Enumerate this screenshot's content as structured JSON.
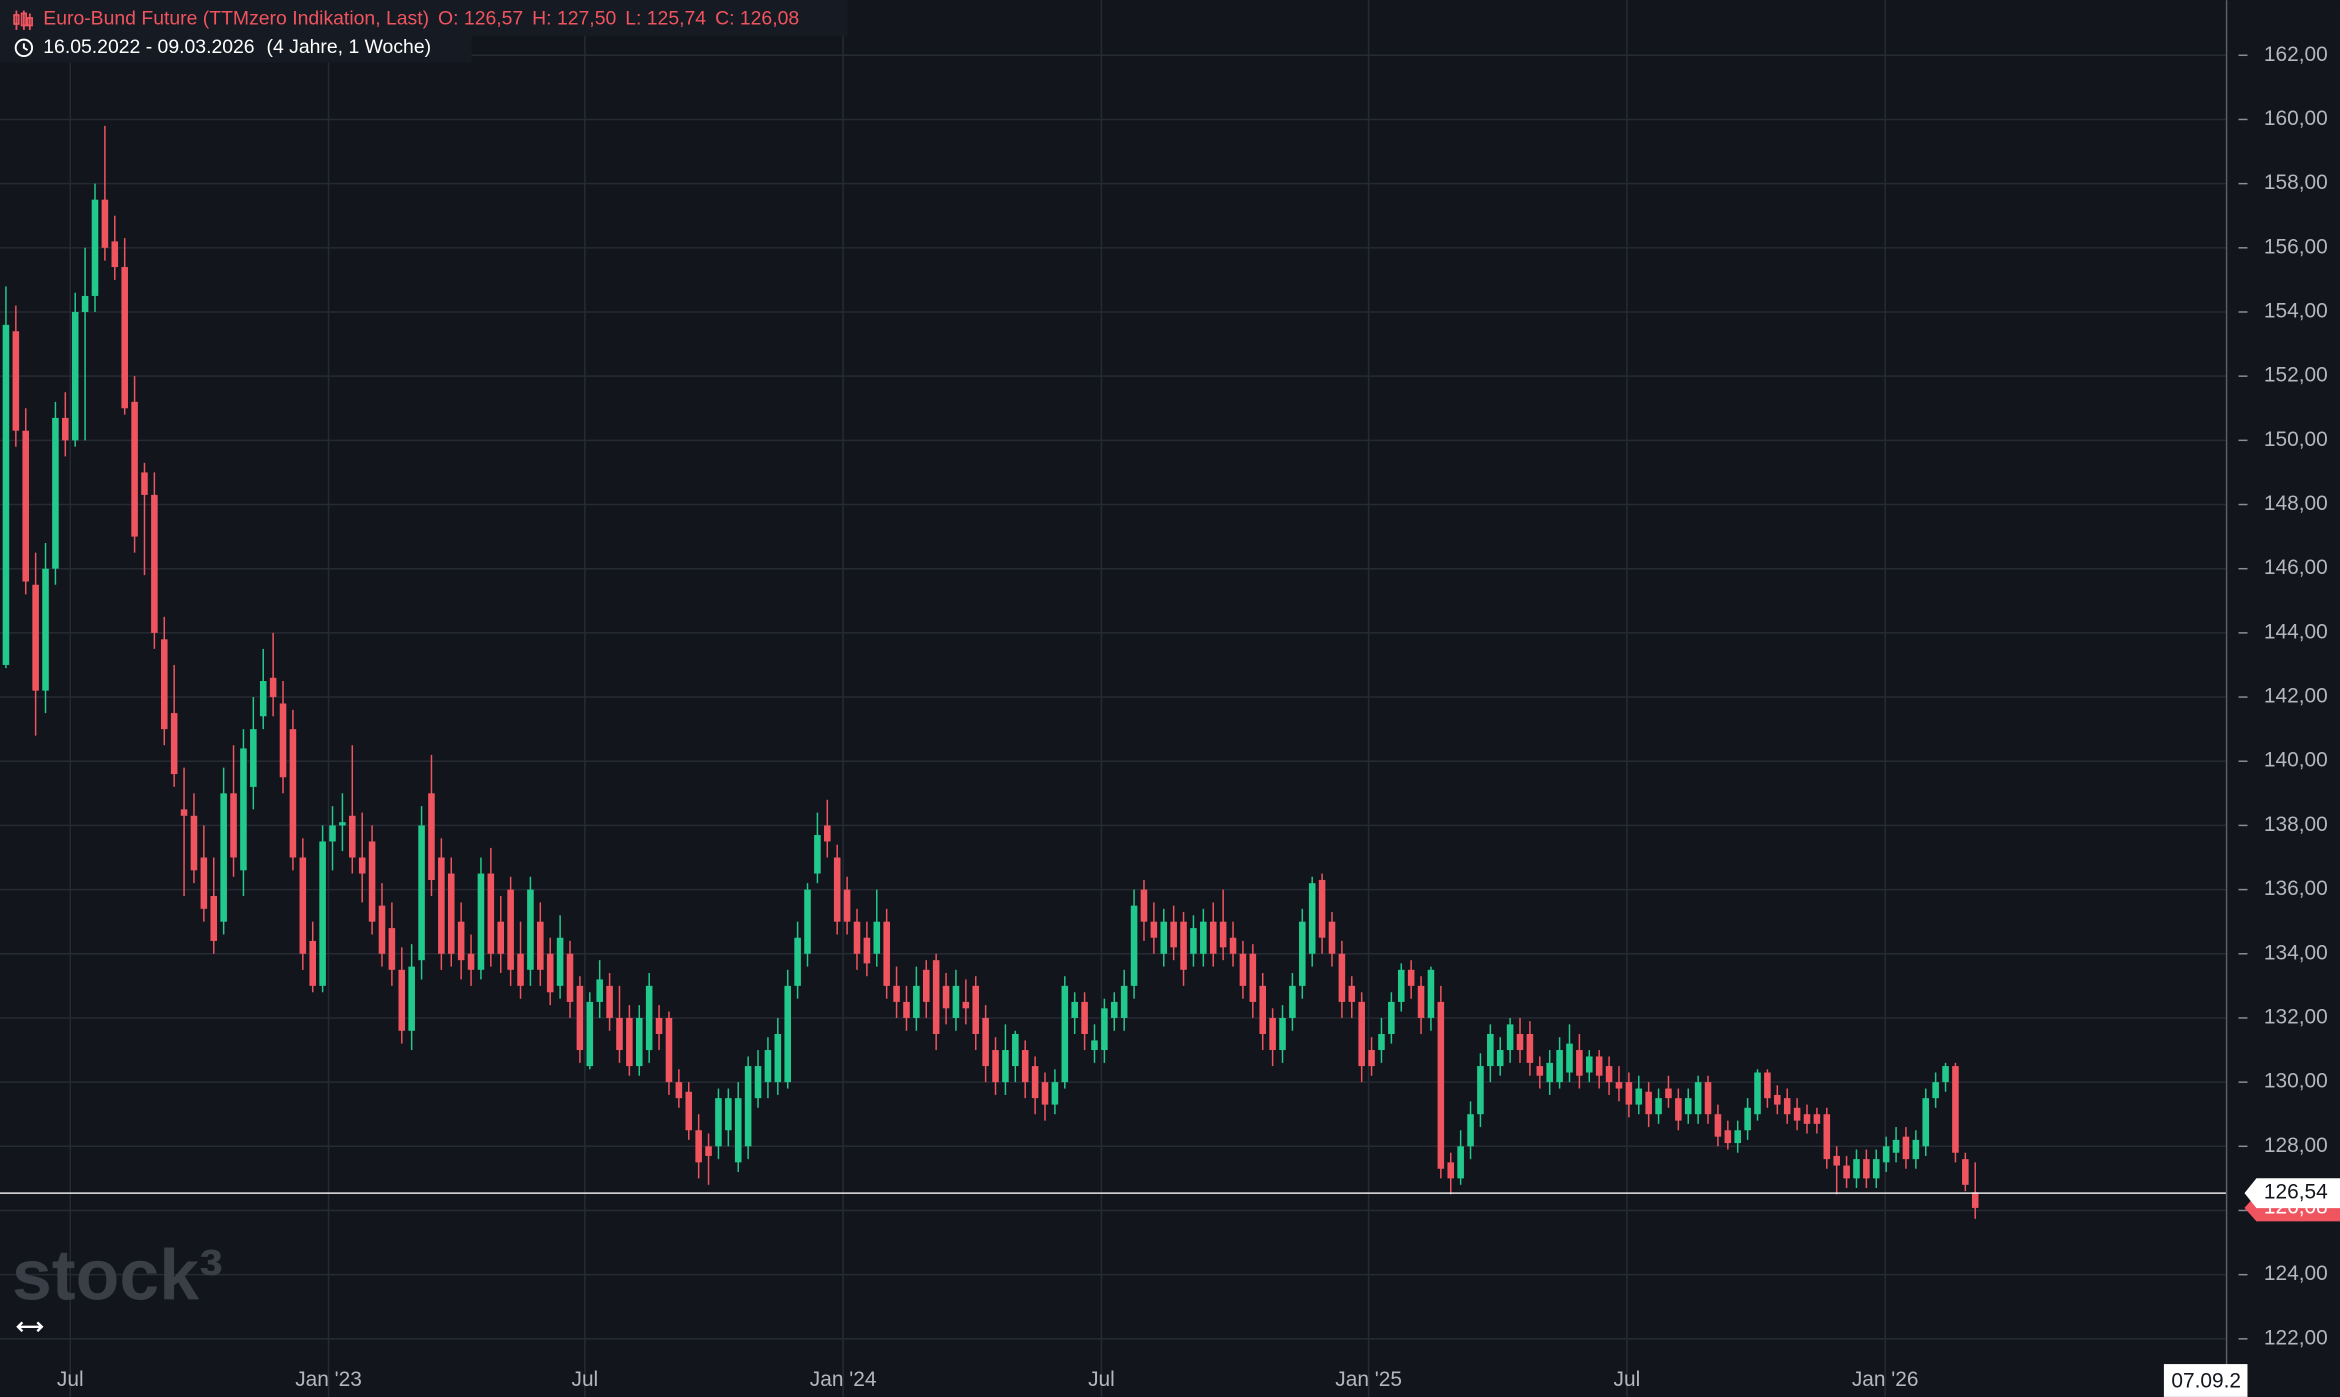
{
  "chart_data": {
    "type": "candlestick",
    "title": "Euro-Bund Future (TTMzero Indikation, Last)",
    "ohlc_labels": [
      "O: 126,57",
      "H: 127,50",
      "L: 125,74",
      "C: 126,08"
    ],
    "subtitle": "16.05.2022 - 09.03.2026",
    "subtitle_note": "(4 Jahre, 1 Woche)",
    "watermark": "stock³",
    "cursor_date": "07.09.2",
    "up_color": "#22c98c",
    "down_color": "#f0545f",
    "grid": true,
    "ylim": [
      120.19,
      163.72
    ],
    "yticks": [
      {
        "value": 122,
        "label": "122,00"
      },
      {
        "value": 124,
        "label": "124,00"
      },
      {
        "value": 126,
        "label": "126,00"
      },
      {
        "value": 128,
        "label": "128,00"
      },
      {
        "value": 130,
        "label": "130,00"
      },
      {
        "value": 132,
        "label": "132,00"
      },
      {
        "value": 134,
        "label": "134,00"
      },
      {
        "value": 136,
        "label": "136,00"
      },
      {
        "value": 138,
        "label": "138,00"
      },
      {
        "value": 140,
        "label": "140,00"
      },
      {
        "value": 142,
        "label": "142,00"
      },
      {
        "value": 144,
        "label": "144,00"
      },
      {
        "value": 146,
        "label": "146,00"
      },
      {
        "value": 148,
        "label": "148,00"
      },
      {
        "value": 150,
        "label": "150,00"
      },
      {
        "value": 152,
        "label": "152,00"
      },
      {
        "value": 154,
        "label": "154,00"
      },
      {
        "value": 156,
        "label": "156,00"
      },
      {
        "value": 158,
        "label": "158,00"
      },
      {
        "value": 160,
        "label": "160,00"
      },
      {
        "value": 162,
        "label": "162,00"
      }
    ],
    "xlim": [
      -0.6,
      224.4
    ],
    "xticks": [
      {
        "value": 6.5,
        "label": "Jul"
      },
      {
        "value": 32.6,
        "label": "Jan '23"
      },
      {
        "value": 58.5,
        "label": "Jul"
      },
      {
        "value": 84.6,
        "label": "Jan '24"
      },
      {
        "value": 110.7,
        "label": "Jul"
      },
      {
        "value": 137.7,
        "label": "Jan '25"
      },
      {
        "value": 163.8,
        "label": "Jul"
      },
      {
        "value": 189.9,
        "label": "Jan '26"
      }
    ],
    "last_price": {
      "value": 126.54,
      "label": "126,54"
    },
    "close_price": {
      "value": 126.08,
      "label": "126,08"
    },
    "candles": [
      [
        143,
        154.8,
        142.9,
        153.6
      ],
      [
        153.4,
        154.2,
        149.8,
        150.3
      ],
      [
        150.3,
        151,
        145.2,
        145.6
      ],
      [
        145.5,
        146.5,
        140.8,
        142.2
      ],
      [
        142.2,
        146.8,
        141.5,
        146
      ],
      [
        146,
        151.2,
        145.5,
        150.7
      ],
      [
        150.7,
        151.5,
        149.5,
        150
      ],
      [
        150,
        154.6,
        149.8,
        154
      ],
      [
        154,
        156,
        150,
        154.5
      ],
      [
        154.5,
        158,
        154,
        157.5
      ],
      [
        157.5,
        159.8,
        155.6,
        156
      ],
      [
        156.2,
        157,
        155,
        155.4
      ],
      [
        155.4,
        156.3,
        150.8,
        151
      ],
      [
        151.2,
        152,
        146.5,
        147
      ],
      [
        149,
        149.3,
        145.8,
        148.3
      ],
      [
        148.3,
        149,
        143.5,
        144
      ],
      [
        143.8,
        144.5,
        140.5,
        141
      ],
      [
        141.5,
        143,
        139.2,
        139.6
      ],
      [
        138.5,
        139.8,
        135.8,
        138.3
      ],
      [
        138.3,
        139,
        136.2,
        136.6
      ],
      [
        137,
        138,
        135,
        135.4
      ],
      [
        135.8,
        137,
        134,
        134.4
      ],
      [
        135,
        139.8,
        134.6,
        139
      ],
      [
        139,
        140.5,
        136.4,
        137
      ],
      [
        136.6,
        141,
        135.8,
        140.4
      ],
      [
        139.2,
        142,
        138.5,
        141
      ],
      [
        141.4,
        143.5,
        141,
        142.5
      ],
      [
        142.6,
        144,
        141.4,
        142
      ],
      [
        141.8,
        142.5,
        139,
        139.5
      ],
      [
        141,
        141.6,
        136.6,
        137
      ],
      [
        137,
        137.6,
        133.5,
        134
      ],
      [
        134.4,
        135,
        132.8,
        133
      ],
      [
        133,
        138,
        132.8,
        137.5
      ],
      [
        137.5,
        138.6,
        136.6,
        138
      ],
      [
        138,
        139,
        137.2,
        138.1
      ],
      [
        138.3,
        140.5,
        136.5,
        137
      ],
      [
        137,
        138.4,
        135.6,
        136.5
      ],
      [
        137.5,
        138,
        134.6,
        135
      ],
      [
        135.5,
        136.2,
        133.6,
        134
      ],
      [
        134.8,
        135.6,
        133,
        133.5
      ],
      [
        133.5,
        134.2,
        131.2,
        131.6
      ],
      [
        131.6,
        134.3,
        131,
        133.6
      ],
      [
        133.8,
        138.6,
        133.2,
        138
      ],
      [
        139,
        140.2,
        135.8,
        136.3
      ],
      [
        137,
        137.6,
        133.5,
        134
      ],
      [
        136.5,
        137,
        133.6,
        134
      ],
      [
        135,
        135.6,
        133.2,
        133.8
      ],
      [
        134,
        134.6,
        133,
        133.5
      ],
      [
        133.5,
        137,
        133.2,
        136.5
      ],
      [
        136.5,
        137.3,
        133.6,
        134
      ],
      [
        135,
        135.8,
        133.4,
        134
      ],
      [
        136,
        136.4,
        133,
        133.5
      ],
      [
        134,
        135,
        132.6,
        133
      ],
      [
        133.5,
        136.4,
        133,
        136
      ],
      [
        135,
        135.6,
        133,
        133.5
      ],
      [
        134,
        134.5,
        132.4,
        132.8
      ],
      [
        133,
        135.2,
        132.6,
        134.5
      ],
      [
        134,
        134.4,
        132,
        132.5
      ],
      [
        133,
        133.3,
        130.6,
        131
      ],
      [
        130.5,
        132.8,
        130.4,
        132.5
      ],
      [
        132.5,
        133.8,
        132,
        133.2
      ],
      [
        133,
        133.4,
        131.6,
        132
      ],
      [
        132,
        133,
        130.6,
        131
      ],
      [
        132,
        132.4,
        130.2,
        130.5
      ],
      [
        130.5,
        132.4,
        130.2,
        132
      ],
      [
        131,
        133.4,
        130.6,
        133
      ],
      [
        132,
        132.4,
        131,
        131.5
      ],
      [
        132,
        132.2,
        129.6,
        130
      ],
      [
        130,
        130.4,
        129.2,
        129.5
      ],
      [
        129.7,
        130,
        128.2,
        128.5
      ],
      [
        128.5,
        129,
        127,
        127.5
      ],
      [
        128,
        128.4,
        126.8,
        127.7
      ],
      [
        128,
        129.8,
        127.6,
        129.5
      ],
      [
        128.5,
        129.8,
        128,
        129.5
      ],
      [
        127.5,
        130,
        127.2,
        129.5
      ],
      [
        128,
        130.8,
        127.6,
        130.5
      ],
      [
        129.5,
        131,
        129.2,
        130.5
      ],
      [
        130,
        131.4,
        129.5,
        131
      ],
      [
        130,
        132,
        129.6,
        131.5
      ],
      [
        130,
        133.5,
        129.8,
        133
      ],
      [
        133,
        135,
        132.6,
        134.5
      ],
      [
        134,
        136.2,
        133.6,
        136
      ],
      [
        136.5,
        138.4,
        136.2,
        137.7
      ],
      [
        138,
        138.8,
        137,
        137.5
      ],
      [
        137,
        137.4,
        134.6,
        135
      ],
      [
        136,
        136.4,
        134.6,
        135
      ],
      [
        135,
        135.4,
        133.5,
        134
      ],
      [
        134.5,
        135,
        133.3,
        133.7
      ],
      [
        134,
        136,
        133.6,
        135
      ],
      [
        135,
        135.4,
        132.6,
        133
      ],
      [
        133,
        133.6,
        132,
        132.5
      ],
      [
        132.5,
        133,
        131.6,
        132
      ],
      [
        132,
        133.6,
        131.6,
        133
      ],
      [
        133.5,
        133.8,
        132,
        132.5
      ],
      [
        133.8,
        134,
        131,
        131.5
      ],
      [
        133,
        133.4,
        131.8,
        132.3
      ],
      [
        132,
        133.5,
        131.6,
        133
      ],
      [
        132.5,
        133.2,
        131.8,
        132.3
      ],
      [
        133,
        133.3,
        131,
        131.5
      ],
      [
        132,
        132.4,
        130,
        130.5
      ],
      [
        131,
        131.4,
        129.6,
        130
      ],
      [
        130,
        131.8,
        129.6,
        131
      ],
      [
        130.5,
        131.6,
        130,
        131.5
      ],
      [
        131,
        131.3,
        129.5,
        130
      ],
      [
        130.5,
        130.8,
        129,
        129.5
      ],
      [
        130,
        130.3,
        128.8,
        129.3
      ],
      [
        129.3,
        130.4,
        129,
        130
      ],
      [
        130,
        133.3,
        129.8,
        133
      ],
      [
        132,
        132.8,
        131.5,
        132.5
      ],
      [
        132.5,
        132.8,
        131,
        131.5
      ],
      [
        131,
        131.8,
        130.6,
        131.3
      ],
      [
        131,
        132.6,
        130.6,
        132.3
      ],
      [
        132,
        132.8,
        131.6,
        132.5
      ],
      [
        132,
        133.5,
        131.6,
        133
      ],
      [
        133,
        136,
        132.6,
        135.5
      ],
      [
        136,
        136.3,
        134.4,
        135
      ],
      [
        135,
        135.6,
        134,
        134.5
      ],
      [
        134,
        135.4,
        133.6,
        135
      ],
      [
        135,
        135.5,
        133.8,
        134.2
      ],
      [
        135,
        135.3,
        133,
        133.5
      ],
      [
        134,
        135.2,
        133.6,
        134.8
      ],
      [
        134,
        135.4,
        133.6,
        135
      ],
      [
        135,
        135.6,
        133.6,
        134
      ],
      [
        135,
        136,
        133.8,
        134.2
      ],
      [
        134.5,
        135,
        133.6,
        134
      ],
      [
        134,
        134.4,
        132.6,
        133
      ],
      [
        134,
        134.3,
        132,
        132.5
      ],
      [
        133,
        133.4,
        131,
        131.5
      ],
      [
        132,
        132.3,
        130.5,
        131
      ],
      [
        131,
        132.4,
        130.6,
        132
      ],
      [
        132,
        133.4,
        131.6,
        133
      ],
      [
        133,
        135.4,
        132.6,
        135
      ],
      [
        134,
        136.4,
        133.6,
        136.2
      ],
      [
        136.3,
        136.5,
        134,
        134.5
      ],
      [
        135,
        135.3,
        133.6,
        134
      ],
      [
        134,
        134.4,
        132,
        132.5
      ],
      [
        133,
        133.3,
        132,
        132.5
      ],
      [
        132.5,
        132.8,
        130,
        130.5
      ],
      [
        131,
        131.4,
        130.2,
        130.5
      ],
      [
        131,
        132,
        130.6,
        131.5
      ],
      [
        131.5,
        132.8,
        131.2,
        132.5
      ],
      [
        132.5,
        133.7,
        132.2,
        133.5
      ],
      [
        133.5,
        133.8,
        132.6,
        133
      ],
      [
        133,
        133.3,
        131.5,
        132
      ],
      [
        132,
        133.6,
        131.6,
        133.5
      ],
      [
        132.5,
        133,
        127,
        127.3
      ],
      [
        127.5,
        127.8,
        126.5,
        127
      ],
      [
        127,
        128.5,
        126.8,
        128
      ],
      [
        128,
        129.4,
        127.6,
        129
      ],
      [
        129,
        130.9,
        128.6,
        130.5
      ],
      [
        130.5,
        131.8,
        130,
        131.5
      ],
      [
        130.5,
        131.4,
        130.2,
        131
      ],
      [
        131,
        132,
        130.6,
        131.8
      ],
      [
        131.5,
        132,
        130.6,
        131
      ],
      [
        131.5,
        131.9,
        130.2,
        130.6
      ],
      [
        130.5,
        130.8,
        129.8,
        130.2
      ],
      [
        130,
        131,
        129.6,
        130.6
      ],
      [
        130,
        131.4,
        129.8,
        131
      ],
      [
        130.3,
        131.8,
        130,
        131.2
      ],
      [
        131,
        131.5,
        129.8,
        130.2
      ],
      [
        130.3,
        131,
        130,
        130.8
      ],
      [
        130.8,
        131,
        129.8,
        130.2
      ],
      [
        130.5,
        130.8,
        129.6,
        130
      ],
      [
        130,
        130.5,
        129.4,
        129.8
      ],
      [
        130,
        130.3,
        128.9,
        129.3
      ],
      [
        129.3,
        130.2,
        129,
        129.8
      ],
      [
        129.7,
        130,
        128.6,
        129
      ],
      [
        129,
        129.8,
        128.7,
        129.5
      ],
      [
        129.8,
        130.2,
        129.2,
        129.5
      ],
      [
        129.5,
        129.8,
        128.5,
        128.8
      ],
      [
        129,
        129.8,
        128.7,
        129.5
      ],
      [
        129,
        130.2,
        128.7,
        130
      ],
      [
        130,
        130.2,
        128.7,
        129
      ],
      [
        129,
        129.3,
        128,
        128.3
      ],
      [
        128.5,
        128.8,
        127.9,
        128.1
      ],
      [
        128.1,
        128.8,
        127.8,
        128.5
      ],
      [
        128.5,
        129.5,
        128.2,
        129.2
      ],
      [
        129,
        130.4,
        128.8,
        130.3
      ],
      [
        130.3,
        130.4,
        129.2,
        129.5
      ],
      [
        129.6,
        129.9,
        129,
        129.3
      ],
      [
        129.5,
        129.8,
        128.7,
        129
      ],
      [
        129.2,
        129.5,
        128.5,
        128.8
      ],
      [
        129,
        129.3,
        128.4,
        128.7
      ],
      [
        129,
        129.2,
        128.4,
        128.7
      ],
      [
        129,
        129.2,
        127.3,
        127.6
      ],
      [
        127.7,
        128,
        126.5,
        127.4
      ],
      [
        127.4,
        127.7,
        126.7,
        127
      ],
      [
        127,
        127.9,
        126.7,
        127.6
      ],
      [
        127.6,
        127.9,
        126.7,
        127
      ],
      [
        127,
        127.9,
        126.7,
        127.6
      ],
      [
        127.5,
        128.3,
        127.2,
        128
      ],
      [
        127.8,
        128.6,
        127.5,
        128.2
      ],
      [
        128.3,
        128.6,
        127.3,
        127.6
      ],
      [
        127.6,
        128.5,
        127.3,
        128.2
      ],
      [
        128,
        129.8,
        127.7,
        129.5
      ],
      [
        129.5,
        130.3,
        129.2,
        130
      ],
      [
        130,
        130.6,
        129.7,
        130.5
      ],
      [
        130.5,
        130.6,
        127.5,
        127.8
      ],
      [
        127.6,
        127.8,
        126.6,
        126.8
      ],
      [
        126.57,
        127.5,
        125.74,
        126.08
      ]
    ]
  }
}
